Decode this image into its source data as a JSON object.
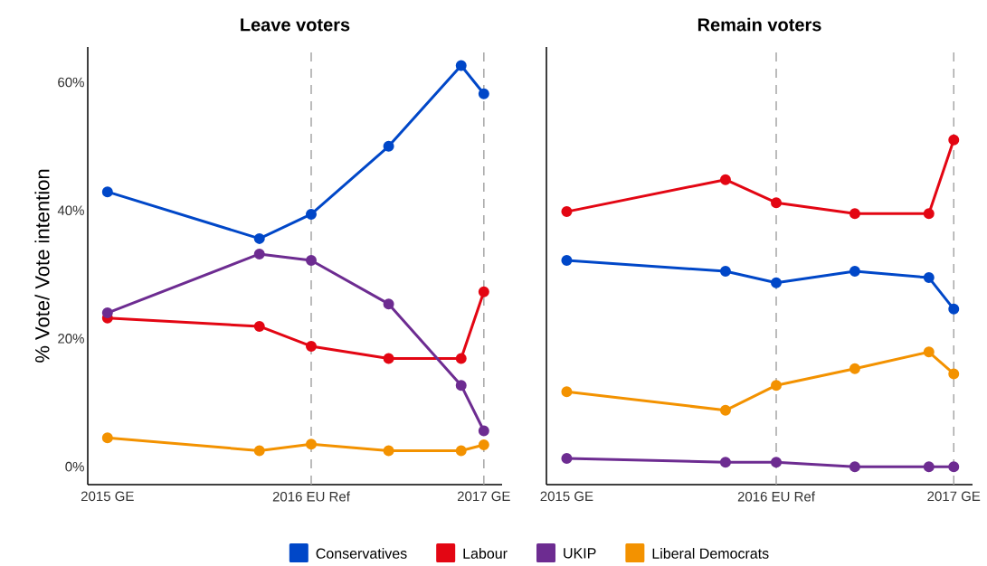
{
  "chart_data": [
    {
      "type": "line",
      "title": "Leave voters",
      "ylabel": "% Vote/ Vote intention",
      "marker": "circle",
      "line_style": "solid",
      "legend": "bottom",
      "x": [
        "2015-05-07",
        "2016-03-10",
        "2016-06-23",
        "2016-11-27",
        "2017-04-23",
        "2017-06-08"
      ],
      "series": [
        {
          "name": "Conservatives",
          "color": "#0047c8",
          "values": [
            42.9,
            35.6,
            39.4,
            50.0,
            62.6,
            58.2
          ]
        },
        {
          "name": "Labour",
          "color": "#e30613",
          "values": [
            23.2,
            21.9,
            18.8,
            16.9,
            16.9,
            27.3
          ]
        },
        {
          "name": "UKIP",
          "color": "#6d2c91",
          "values": [
            24.0,
            33.2,
            32.2,
            25.4,
            12.7,
            5.6
          ]
        },
        {
          "name": "Liberal Democrats",
          "color": "#f39200",
          "values": [
            4.5,
            2.5,
            3.5,
            2.5,
            2.5,
            3.4
          ]
        }
      ],
      "xlim": [
        "2015-03-28",
        "2017-07-15"
      ],
      "ylim": [
        -2.8,
        65.5
      ],
      "xticks": [
        {
          "value": "2015-05-07",
          "label": "2015 GE"
        },
        {
          "value": "2016-06-23",
          "label": "2016 EU Ref"
        },
        {
          "value": "2017-06-08",
          "label": "2017 GE"
        }
      ],
      "yticks": [
        {
          "value": 0,
          "label": "0%"
        },
        {
          "value": 20,
          "label": "20%"
        },
        {
          "value": 40,
          "label": "40%"
        },
        {
          "value": 60,
          "label": "60%"
        }
      ],
      "ref_lines": [
        {
          "axis": "x",
          "value": "2016-06-23",
          "color": "#a6a6a6",
          "line_style": "dashed"
        },
        {
          "axis": "x",
          "value": "2017-06-08",
          "color": "#a6a6a6",
          "line_style": "dashed"
        }
      ]
    },
    {
      "type": "line",
      "title": "Remain voters",
      "marker": "circle",
      "line_style": "solid",
      "tick_labels": "x",
      "x": [
        "2015-05-07",
        "2016-03-15",
        "2016-06-23",
        "2016-11-25",
        "2017-04-20",
        "2017-06-08"
      ],
      "series": [
        {
          "color": "#0047c8",
          "values": [
            32.2,
            30.5,
            28.7,
            30.5,
            29.5,
            24.6
          ]
        },
        {
          "color": "#e30613",
          "values": [
            39.8,
            44.8,
            41.2,
            39.5,
            39.5,
            51.0
          ]
        },
        {
          "color": "#6d2c91",
          "values": [
            1.3,
            0.7,
            0.7,
            0,
            0,
            0
          ]
        },
        {
          "color": "#f39200",
          "values": [
            11.7,
            8.8,
            12.7,
            15.3,
            17.9,
            14.5
          ]
        }
      ],
      "xlim": [
        "2015-03-28",
        "2017-07-15"
      ],
      "ylim": [
        -2.8,
        65.5
      ],
      "xticks": [
        {
          "value": "2015-05-07",
          "label": "2015 GE"
        },
        {
          "value": "2016-06-23",
          "label": "2016 EU Ref"
        },
        {
          "value": "2017-06-08",
          "label": "2017 GE"
        }
      ],
      "ref_lines": [
        {
          "axis": "x",
          "value": "2016-06-23",
          "color": "#a6a6a6",
          "line_style": "dashed"
        },
        {
          "axis": "x",
          "value": "2017-06-08",
          "color": "#a6a6a6",
          "line_style": "dashed"
        }
      ]
    }
  ]
}
